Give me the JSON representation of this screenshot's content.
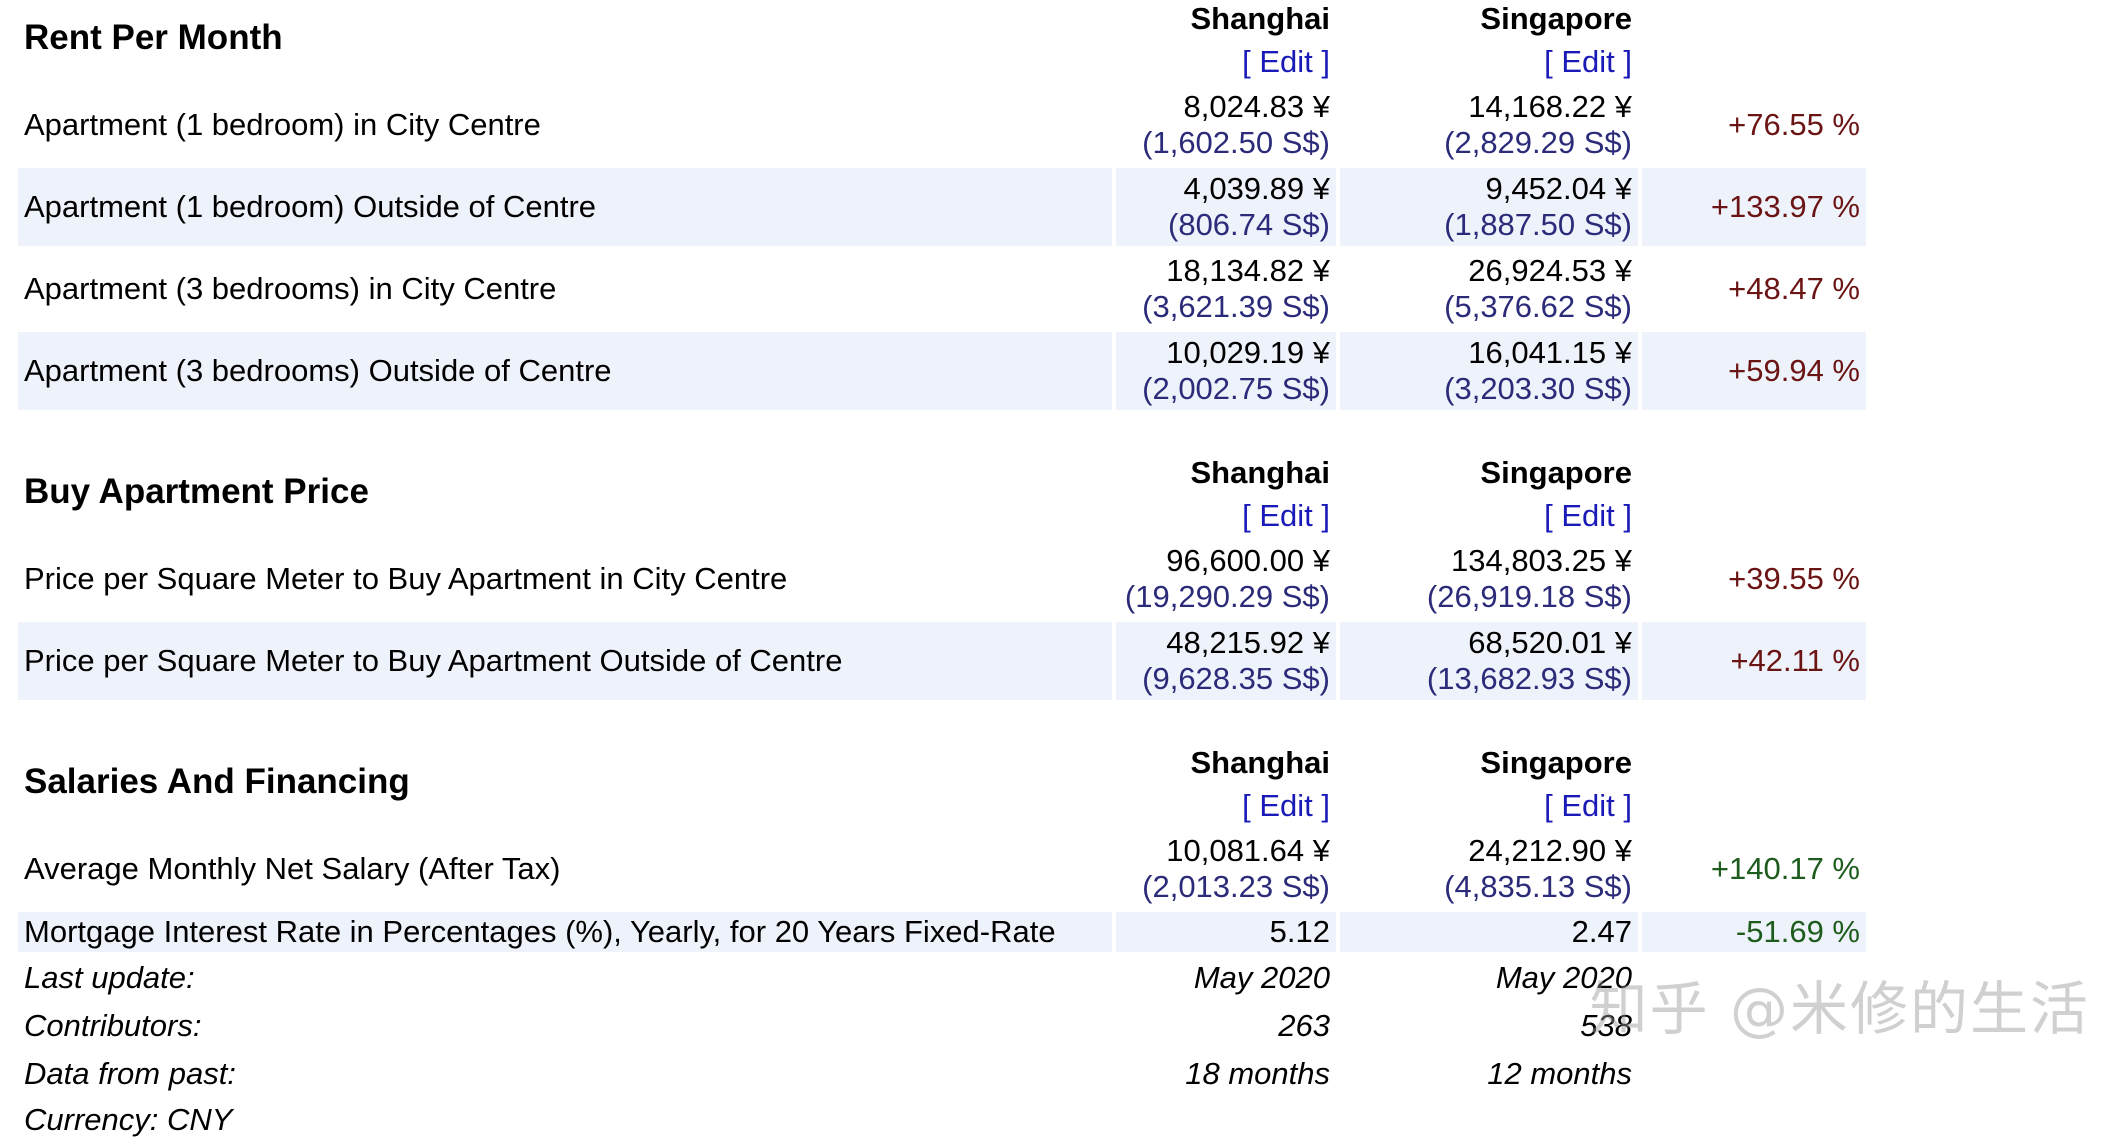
{
  "sections": [
    {
      "title": "Rent Per Month",
      "city1": "Shanghai",
      "city2": "Singapore",
      "edit": "[ Edit ]",
      "rows": [
        {
          "label": "Apartment (1 bedroom) in City Centre",
          "v1": "8,024.83 ¥",
          "v1s": "(1,602.50 S$)",
          "v2": "14,168.22 ¥",
          "v2s": "(2,829.29 S$)",
          "diff": "+76.55 %"
        },
        {
          "label": "Apartment (1 bedroom) Outside of Centre",
          "v1": "4,039.89 ¥",
          "v1s": "(806.74 S$)",
          "v2": "9,452.04 ¥",
          "v2s": "(1,887.50 S$)",
          "diff": "+133.97 %"
        },
        {
          "label": "Apartment (3 bedrooms) in City Centre",
          "v1": "18,134.82 ¥",
          "v1s": "(3,621.39 S$)",
          "v2": "26,924.53 ¥",
          "v2s": "(5,376.62 S$)",
          "diff": "+48.47 %"
        },
        {
          "label": "Apartment (3 bedrooms) Outside of Centre",
          "v1": "10,029.19 ¥",
          "v1s": "(2,002.75 S$)",
          "v2": "16,041.15 ¥",
          "v2s": "(3,203.30 S$)",
          "diff": "+59.94 %"
        }
      ]
    },
    {
      "title": "Buy Apartment Price",
      "city1": "Shanghai",
      "city2": "Singapore",
      "edit": "[ Edit ]",
      "rows": [
        {
          "label": "Price per Square Meter to Buy Apartment in City Centre",
          "v1": "96,600.00 ¥",
          "v1s": "(19,290.29 S$)",
          "v2": "134,803.25 ¥",
          "v2s": "(26,919.18 S$)",
          "diff": "+39.55 %"
        },
        {
          "label": "Price per Square Meter to Buy Apartment Outside of Centre",
          "v1": "48,215.92 ¥",
          "v1s": "(9,628.35 S$)",
          "v2": "68,520.01 ¥",
          "v2s": "(13,682.93 S$)",
          "diff": "+42.11 %"
        }
      ]
    },
    {
      "title": "Salaries And Financing",
      "city1": "Shanghai",
      "city2": "Singapore",
      "edit": "[ Edit ]",
      "rows": [
        {
          "label": "Average Monthly Net Salary (After Tax)",
          "v1": "10,081.64 ¥",
          "v1s": "(2,013.23 S$)",
          "v2": "24,212.90 ¥",
          "v2s": "(4,835.13 S$)",
          "diff": "+140.17 %"
        },
        {
          "label": "Mortgage Interest Rate in Percentages (%), Yearly, for 20 Years Fixed-Rate",
          "v1": "5.12",
          "v2": "2.47",
          "diff": "-51.69 %"
        }
      ]
    }
  ],
  "footer": {
    "last_update_label": "Last update:",
    "last_update_1": "May 2020",
    "last_update_2": "May 2020",
    "contributors_label": "Contributors:",
    "contributors_1": "263",
    "contributors_2": "538",
    "data_from_label": "Data from past:",
    "data_from_1": "18 months",
    "data_from_2": "12 months",
    "currency_label": "Currency: CNY"
  },
  "watermark": "知乎 @米修的生活",
  "colors": {
    "edit_link": "#1a1ab8",
    "converted_value": "#2b2b7a",
    "diff_positive_cost": "#6b1414",
    "diff_salary_positive": "#1e5c1e",
    "diff_negative": "#1e5c1e",
    "row_shade": "#eef2fa"
  }
}
